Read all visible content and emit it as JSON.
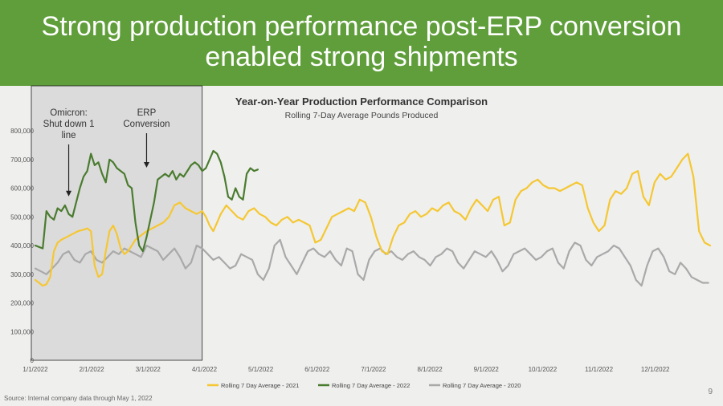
{
  "slide": {
    "title": "Strong production performance post-ERP conversion\nenabled strong shipments",
    "source": "Source:   Internal company data through May 1, 2022",
    "page_number": "9",
    "header_color": "#5f9e3a"
  },
  "chart_data": {
    "type": "line",
    "title": "Year-on-Year Production Performance Comparison",
    "subtitle": "Rolling 7-Day Average Pounds Produced",
    "xlabel": "",
    "ylabel": "",
    "ylim": [
      0,
      800000
    ],
    "y_ticks": [
      "0",
      "100,000",
      "200,000",
      "300,000",
      "400,000",
      "500,000",
      "600,000",
      "700,000",
      "800,000"
    ],
    "x_ticks": [
      "1/1/2022",
      "2/1/2022",
      "3/1/2022",
      "4/1/2022",
      "5/1/2022",
      "6/1/2022",
      "7/1/2022",
      "8/1/2022",
      "9/1/2022",
      "10/1/2022",
      "11/1/2022",
      "12/1/2022"
    ],
    "x_domain_days": [
      0,
      364
    ],
    "grid": false,
    "legend_position": "bottom",
    "highlight_region": {
      "x_from_day": 0,
      "x_to_day": 90
    },
    "annotations": [
      {
        "text": "Omicron:\nShut down 1\nline",
        "x_day": 18,
        "y_value": 560000
      },
      {
        "text": "ERP\nConversion",
        "x_day": 60,
        "y_value": 660000
      }
    ],
    "series": [
      {
        "name": "Rolling 7 Day Average - 2021",
        "color": "#f5c732",
        "x": [
          0,
          2,
          4,
          6,
          8,
          10,
          12,
          14,
          17,
          20,
          23,
          26,
          28,
          30,
          32,
          34,
          36,
          38,
          40,
          42,
          44,
          46,
          48,
          50,
          52,
          54,
          56,
          58,
          60,
          63,
          66,
          69,
          72,
          75,
          78,
          81,
          84,
          87,
          90,
          92,
          94,
          96,
          98,
          100,
          103,
          106,
          109,
          112,
          115,
          118,
          121,
          124,
          127,
          130,
          133,
          136,
          139,
          142,
          145,
          148,
          151,
          154,
          157,
          160,
          163,
          166,
          169,
          172,
          175,
          178,
          181,
          184,
          187,
          190,
          193,
          196,
          199,
          202,
          205,
          208,
          211,
          214,
          217,
          220,
          223,
          226,
          229,
          232,
          235,
          238,
          241,
          244,
          247,
          250,
          253,
          256,
          259,
          262,
          265,
          268,
          271,
          274,
          277,
          280,
          283,
          286,
          289,
          292,
          295,
          298,
          301,
          304,
          307,
          310,
          313,
          316,
          319,
          322,
          325,
          328,
          331,
          334,
          337,
          340,
          343,
          346,
          349,
          352,
          355,
          358,
          361,
          364
        ],
        "values": [
          280000,
          270000,
          260000,
          265000,
          290000,
          380000,
          410000,
          420000,
          430000,
          440000,
          450000,
          455000,
          460000,
          450000,
          330000,
          290000,
          300000,
          380000,
          450000,
          470000,
          440000,
          390000,
          370000,
          380000,
          400000,
          420000,
          430000,
          440000,
          450000,
          460000,
          470000,
          480000,
          500000,
          540000,
          550000,
          530000,
          520000,
          510000,
          520000,
          500000,
          470000,
          450000,
          480000,
          510000,
          540000,
          520000,
          500000,
          490000,
          520000,
          530000,
          510000,
          500000,
          480000,
          470000,
          490000,
          500000,
          480000,
          490000,
          480000,
          470000,
          410000,
          420000,
          460000,
          500000,
          510000,
          520000,
          530000,
          520000,
          560000,
          550000,
          500000,
          430000,
          380000,
          370000,
          430000,
          470000,
          480000,
          510000,
          520000,
          500000,
          510000,
          530000,
          520000,
          540000,
          550000,
          520000,
          510000,
          490000,
          530000,
          560000,
          540000,
          520000,
          560000,
          570000,
          470000,
          480000,
          560000,
          590000,
          600000,
          620000,
          630000,
          610000,
          600000,
          600000,
          590000,
          600000,
          610000,
          620000,
          610000,
          530000,
          480000,
          450000,
          470000,
          560000,
          590000,
          580000,
          600000,
          650000,
          660000,
          570000,
          540000,
          620000,
          650000,
          630000,
          640000,
          670000,
          700000,
          720000,
          640000,
          450000,
          410000,
          400000
        ]
      },
      {
        "name": "Rolling 7 Day Average - 2022",
        "color": "#4a7c2f",
        "x": [
          0,
          2,
          4,
          6,
          8,
          10,
          12,
          14,
          16,
          18,
          20,
          22,
          24,
          26,
          28,
          30,
          32,
          34,
          36,
          38,
          40,
          42,
          44,
          46,
          48,
          50,
          52,
          54,
          56,
          58,
          60,
          62,
          64,
          66,
          68,
          70,
          72,
          74,
          76,
          78,
          80,
          82,
          84,
          86,
          88,
          90,
          92,
          94,
          96,
          98,
          100,
          102,
          104,
          106,
          108,
          110,
          112,
          114,
          116,
          118,
          120
        ],
        "values": [
          400000,
          395000,
          390000,
          520000,
          500000,
          490000,
          530000,
          520000,
          540000,
          510000,
          500000,
          550000,
          600000,
          640000,
          660000,
          720000,
          680000,
          690000,
          650000,
          620000,
          700000,
          690000,
          670000,
          660000,
          650000,
          610000,
          600000,
          480000,
          400000,
          380000,
          430000,
          490000,
          550000,
          630000,
          640000,
          650000,
          640000,
          660000,
          630000,
          650000,
          640000,
          660000,
          680000,
          690000,
          680000,
          660000,
          670000,
          700000,
          730000,
          720000,
          690000,
          640000,
          570000,
          560000,
          600000,
          570000,
          560000,
          650000,
          670000,
          660000,
          665000
        ]
      },
      {
        "name": "Rolling 7 Day Average - 2020",
        "color": "#a9a9a9",
        "x": [
          0,
          3,
          6,
          9,
          12,
          15,
          18,
          21,
          24,
          27,
          30,
          33,
          36,
          39,
          42,
          45,
          48,
          51,
          54,
          57,
          60,
          63,
          66,
          69,
          72,
          75,
          78,
          81,
          84,
          87,
          90,
          93,
          96,
          99,
          102,
          105,
          108,
          111,
          114,
          117,
          120,
          123,
          126,
          129,
          132,
          135,
          138,
          141,
          144,
          147,
          150,
          153,
          156,
          159,
          162,
          165,
          168,
          171,
          174,
          177,
          180,
          183,
          186,
          189,
          192,
          195,
          198,
          201,
          204,
          207,
          210,
          213,
          216,
          219,
          222,
          225,
          228,
          231,
          234,
          237,
          240,
          243,
          246,
          249,
          252,
          255,
          258,
          261,
          264,
          267,
          270,
          273,
          276,
          279,
          282,
          285,
          288,
          291,
          294,
          297,
          300,
          303,
          306,
          309,
          312,
          315,
          318,
          321,
          324,
          327,
          330,
          333,
          336,
          339,
          342,
          345,
          348,
          351,
          354,
          357,
          360,
          363
        ],
        "values": [
          320000,
          310000,
          300000,
          320000,
          340000,
          370000,
          380000,
          350000,
          340000,
          370000,
          380000,
          350000,
          340000,
          360000,
          380000,
          370000,
          390000,
          380000,
          370000,
          360000,
          400000,
          390000,
          380000,
          350000,
          370000,
          390000,
          360000,
          320000,
          340000,
          400000,
          390000,
          370000,
          350000,
          360000,
          340000,
          320000,
          330000,
          370000,
          360000,
          350000,
          300000,
          280000,
          320000,
          400000,
          420000,
          360000,
          330000,
          300000,
          340000,
          380000,
          390000,
          370000,
          360000,
          380000,
          350000,
          330000,
          390000,
          380000,
          300000,
          280000,
          350000,
          380000,
          390000,
          370000,
          380000,
          360000,
          350000,
          370000,
          380000,
          360000,
          350000,
          330000,
          360000,
          370000,
          390000,
          380000,
          340000,
          320000,
          350000,
          380000,
          370000,
          360000,
          380000,
          350000,
          310000,
          330000,
          370000,
          380000,
          390000,
          370000,
          350000,
          360000,
          380000,
          390000,
          340000,
          320000,
          380000,
          410000,
          400000,
          350000,
          330000,
          360000,
          370000,
          380000,
          400000,
          390000,
          360000,
          330000,
          280000,
          260000,
          330000,
          380000,
          390000,
          360000,
          310000,
          300000,
          340000,
          320000,
          290000,
          280000,
          270000,
          270000
        ]
      }
    ]
  }
}
